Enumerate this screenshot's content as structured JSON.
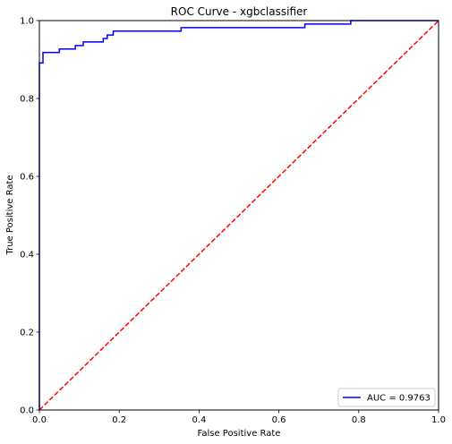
{
  "chart_data": {
    "type": "line",
    "title": "ROC Curve - xgbclassifier",
    "xlabel": "False Positive Rate",
    "ylabel": "True Positive Rate",
    "xlim": [
      0,
      1
    ],
    "ylim": [
      0,
      1
    ],
    "x_ticks": [
      "0.0",
      "0.2",
      "0.4",
      "0.6",
      "0.8",
      "1.0"
    ],
    "y_ticks": [
      "0.0",
      "0.2",
      "0.4",
      "0.6",
      "0.8",
      "1.0"
    ],
    "grid": false,
    "legend_position": "bottom-right",
    "series": [
      {
        "name": "AUC = 0.9763",
        "color": "#0000ff",
        "style": "solid",
        "x": [
          0.0,
          0.0,
          0.009,
          0.009,
          0.05,
          0.05,
          0.09,
          0.09,
          0.11,
          0.11,
          0.16,
          0.16,
          0.17,
          0.17,
          0.185,
          0.185,
          0.355,
          0.355,
          0.665,
          0.665,
          0.78,
          0.78,
          1.0
        ],
        "y": [
          0.0,
          0.891,
          0.891,
          0.918,
          0.918,
          0.927,
          0.927,
          0.936,
          0.936,
          0.945,
          0.945,
          0.954,
          0.954,
          0.963,
          0.963,
          0.973,
          0.973,
          0.982,
          0.982,
          0.991,
          0.991,
          1.0,
          1.0
        ]
      },
      {
        "name": "",
        "color": "#ff0000",
        "style": "dashed",
        "x": [
          0,
          1
        ],
        "y": [
          0,
          1
        ]
      }
    ]
  }
}
